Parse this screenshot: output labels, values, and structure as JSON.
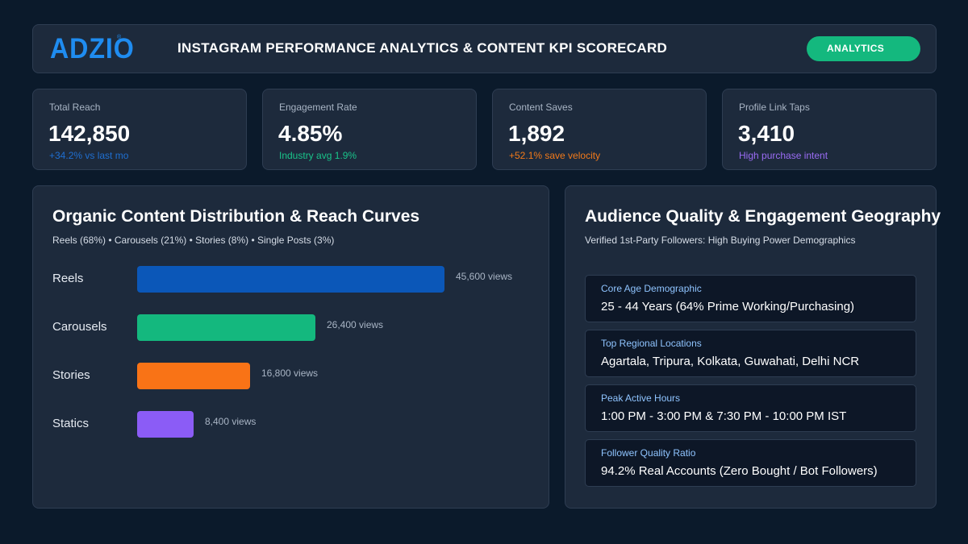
{
  "header": {
    "logo": "ADZIO",
    "logo_mark": "®",
    "title": "INSTAGRAM PERFORMANCE ANALYTICS & CONTENT KPI SCORECARD",
    "badge": "ANALYTICS"
  },
  "kpis": [
    {
      "label": "Total Reach",
      "value": "142,850",
      "sub": "+34.2% vs last mo",
      "sub_color": "#1f6fd1"
    },
    {
      "label": "Engagement Rate",
      "value": "4.85%",
      "sub": "Industry avg 1.9%",
      "sub_color": "#19c48a"
    },
    {
      "label": "Content Saves",
      "value": "1,892",
      "sub": "+52.1% save velocity",
      "sub_color": "#f27a1a"
    },
    {
      "label": "Profile Link Taps",
      "value": "3,410",
      "sub": "High purchase intent",
      "sub_color": "#9b6cf5"
    }
  ],
  "distribution": {
    "title": "Organic Content Distribution & Reach Curves",
    "subtitle": "Reels (68%) • Carousels (21%) • Stories (8%) • Single Posts (3%)"
  },
  "chart_data": {
    "type": "bar",
    "orientation": "horizontal",
    "categories": [
      "Reels",
      "Carousels",
      "Stories",
      "Statics"
    ],
    "values": [
      45600,
      26400,
      16800,
      8400
    ],
    "value_labels": [
      "45,600 views",
      "26,400 views",
      "16,800 views",
      "8,400 views"
    ],
    "colors": [
      "#0b57b8",
      "#14b87e",
      "#f97316",
      "#8b5cf6"
    ],
    "xlim": [
      0,
      45600
    ],
    "grid": false
  },
  "audience": {
    "title": "Audience Quality & Engagement Geography",
    "subtitle": "Verified 1st-Party Followers: High Buying Power Demographics",
    "items": [
      {
        "label": "Core Age Demographic",
        "value": "25 - 44 Years (64% Prime Working/Purchasing)"
      },
      {
        "label": "Top Regional Locations",
        "value": "Agartala, Tripura, Kolkata, Guwahati, Delhi NCR"
      },
      {
        "label": "Peak Active Hours",
        "value": "1:00 PM - 3:00 PM & 7:30 PM - 10:00 PM IST"
      },
      {
        "label": "Follower Quality Ratio",
        "value": "94.2% Real Accounts (Zero Bought / Bot Followers)"
      }
    ]
  }
}
